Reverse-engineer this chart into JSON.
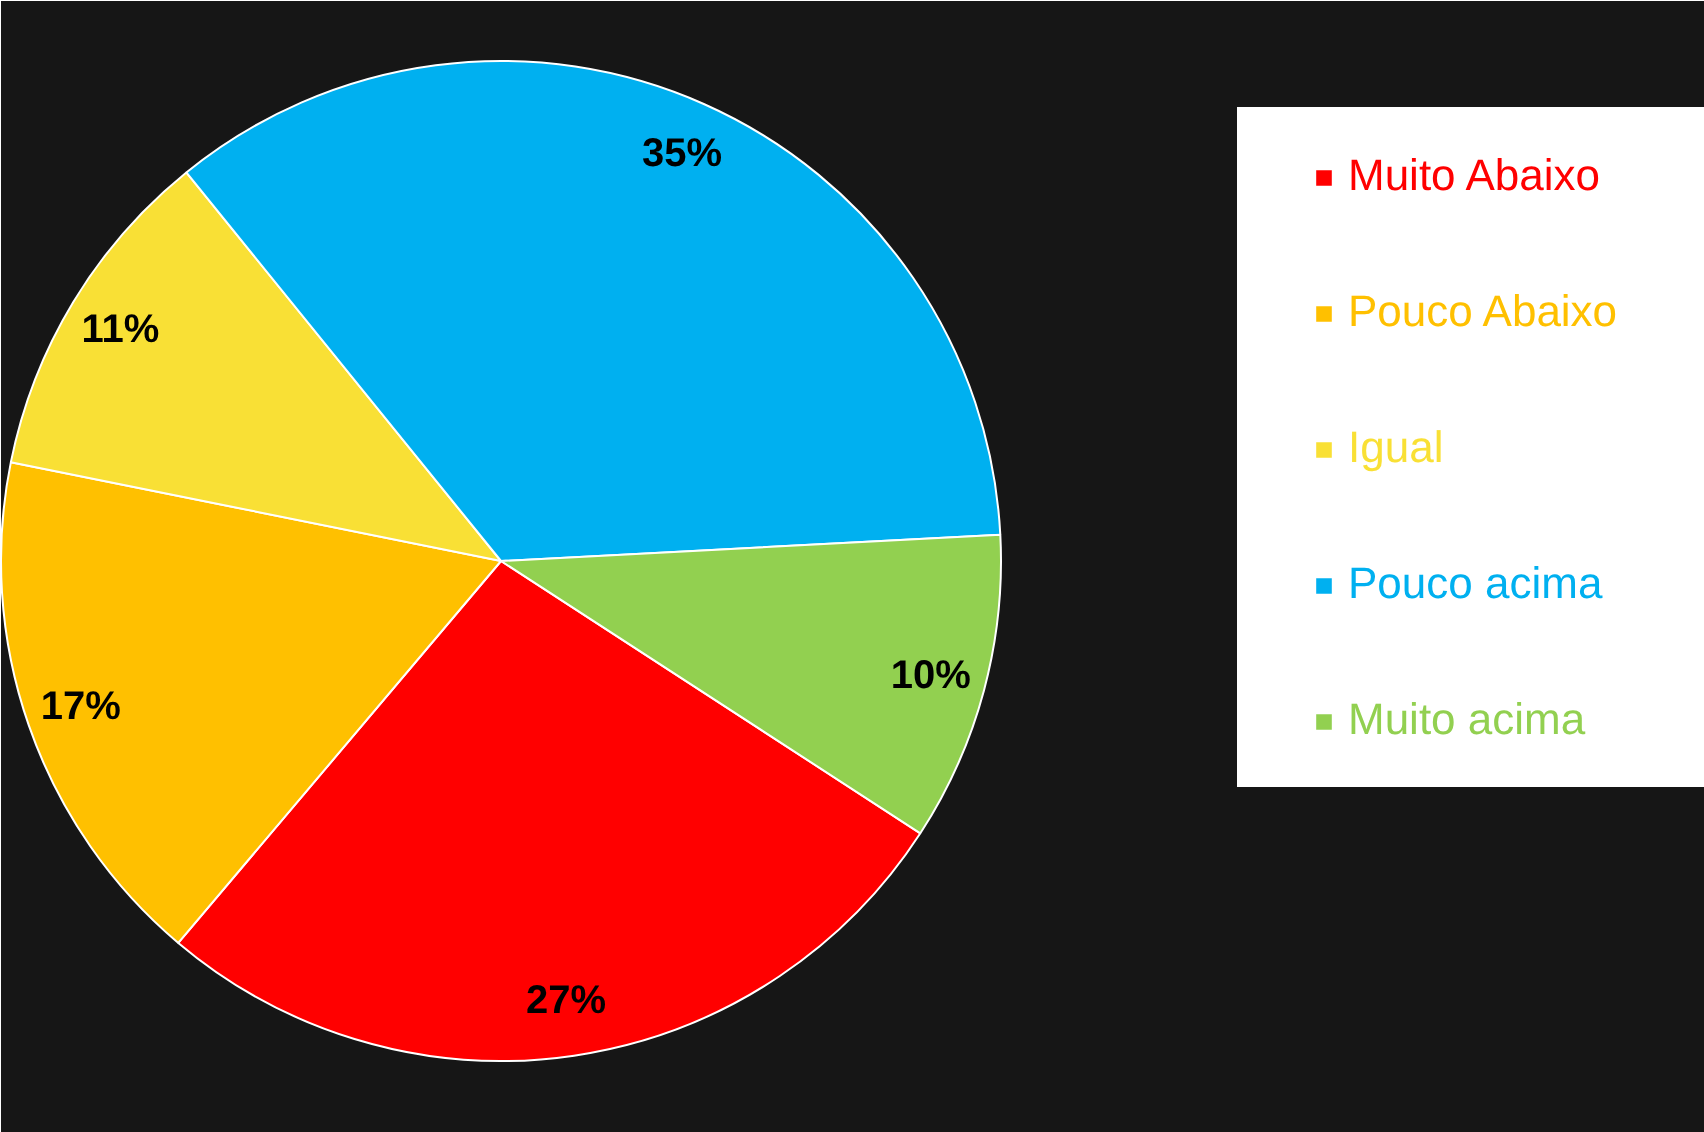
{
  "chart_data": {
    "type": "pie",
    "categories": [
      "Muito Abaixo",
      "Pouco Abaixo",
      "Igual",
      "Pouco acima",
      "Muito acima"
    ],
    "values": [
      27,
      17,
      11,
      35,
      10
    ],
    "colors": [
      "#ff0000",
      "#ffc000",
      "#f9e035",
      "#00b0f0",
      "#92d050"
    ],
    "value_labels": [
      "27%",
      "17%",
      "11%",
      "35%",
      "10%"
    ],
    "legend": "right"
  }
}
